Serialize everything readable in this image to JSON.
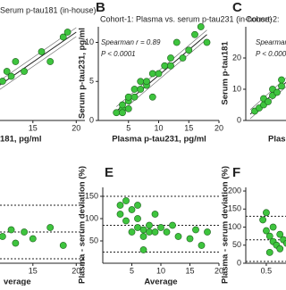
{
  "chart_data": [
    {
      "type": "scatter",
      "title": "Serum p-tau181 (in-house)",
      "x_label": "181, pg/ml",
      "x": [
        11.5,
        12,
        12.5,
        13,
        14,
        16,
        17,
        18.5,
        19
      ],
      "values": [
        4,
        5,
        4.5,
        6,
        5,
        7,
        6,
        8.5,
        9
      ],
      "color": "#3ec43e",
      "xlim": [
        11,
        21
      ],
      "ylim": [
        0,
        10
      ],
      "xticks": [
        15,
        20
      ],
      "yticks": [],
      "fit_line": {
        "x": [
          11,
          20
        ],
        "y": [
          3.5,
          9
        ]
      }
    },
    {
      "type": "scatter",
      "panel": "B",
      "title": "Cohort-1: Plasma vs. serum p-tau231 (in-house)",
      "x_label": "Plasma p-tau231, pg/ml",
      "y_label": "Serum p-tau231, pg/ml",
      "annotations": [
        "Spearman r = 0.89",
        "P < 0.0001"
      ],
      "x": [
        3,
        4,
        4,
        5,
        5,
        6,
        6,
        7,
        7,
        8,
        9,
        10,
        11,
        12,
        12,
        13,
        14,
        15,
        16,
        17,
        18,
        4,
        5,
        8,
        9
      ],
      "values": [
        1,
        1.5,
        2,
        2.5,
        3,
        4,
        3,
        4,
        5,
        4.5,
        6,
        6,
        7,
        7,
        8,
        10,
        8,
        9,
        11,
        12,
        10,
        1,
        1.5,
        5,
        3
      ],
      "color": "#3ec43e",
      "xlim": [
        0,
        20
      ],
      "ylim": [
        0,
        12
      ],
      "xticks": [
        5,
        10,
        15,
        20
      ],
      "yticks": [
        0,
        5,
        10
      ],
      "fit_line": {
        "x": [
          3,
          18
        ],
        "y": [
          1.2,
          11
        ]
      }
    },
    {
      "type": "scatter",
      "panel": "C",
      "title": "Cohort-2:",
      "x_label": "Plasm",
      "y_label": "Serum p-tau181",
      "annotations": [
        "Spearman r",
        "P < 0.0001"
      ],
      "x": [
        1,
        1.5,
        2,
        2,
        2.5,
        3,
        3,
        3.5,
        4,
        4,
        5,
        6
      ],
      "values": [
        3,
        4,
        5,
        7,
        6,
        8,
        10,
        9,
        11,
        13,
        14,
        18
      ],
      "color": "#3ec43e",
      "xlim": [
        0,
        6
      ],
      "ylim": [
        0,
        30
      ],
      "xticks": [],
      "yticks": [
        0,
        10,
        20
      ],
      "fit_line": {
        "x": [
          0.5,
          6
        ],
        "y": [
          2,
          16
        ]
      }
    },
    {
      "type": "scatter",
      "x_label": "verage",
      "x": [
        11.5,
        12.5,
        13,
        14,
        15,
        17,
        18.5
      ],
      "values": [
        60,
        75,
        45,
        70,
        55,
        80,
        40
      ],
      "color": "#3ec43e",
      "xlim": [
        11,
        21
      ],
      "ylim": [
        0,
        180
      ],
      "xticks": [
        15,
        20
      ],
      "yticks": [],
      "hlines": [
        130,
        70,
        10
      ]
    },
    {
      "type": "scatter",
      "panel": "E",
      "x_label": "Average",
      "y_label": "Plasma - serum deviation (%)",
      "x": [
        3,
        3,
        4,
        4,
        5,
        5,
        6,
        6,
        6,
        7,
        7,
        8,
        8,
        9,
        10,
        11,
        12,
        13,
        15,
        16,
        17,
        18,
        7,
        9
      ],
      "values": [
        130,
        110,
        140,
        95,
        120,
        70,
        80,
        100,
        130,
        75,
        60,
        85,
        70,
        70,
        80,
        70,
        85,
        60,
        55,
        75,
        40,
        70,
        30,
        110
      ],
      "color": "#3ec43e",
      "xlim": [
        0,
        20
      ],
      "ylim": [
        0,
        170
      ],
      "xticks": [
        5,
        10,
        15,
        20
      ],
      "yticks": [
        50,
        100,
        150
      ],
      "hlines": [
        150,
        85,
        25
      ]
    },
    {
      "type": "scatter",
      "panel": "F",
      "y_label": "Plasma - serum deviation (%)",
      "x": [
        0.45,
        0.5,
        0.55,
        0.6,
        0.6,
        0.65,
        0.7,
        0.7,
        0.75,
        0.8,
        0.85,
        0.5,
        0.55
      ],
      "values": [
        120,
        90,
        75,
        60,
        100,
        50,
        80,
        40,
        65,
        55,
        70,
        140,
        30
      ],
      "color": "#3ec43e",
      "xlim": [
        0.2,
        1.05
      ],
      "ylim": [
        0,
        210
      ],
      "xticks": [
        0.5,
        1
      ],
      "yticks": [
        0,
        50,
        100,
        150,
        200
      ],
      "hlines": [
        130,
        65,
        5
      ]
    }
  ]
}
